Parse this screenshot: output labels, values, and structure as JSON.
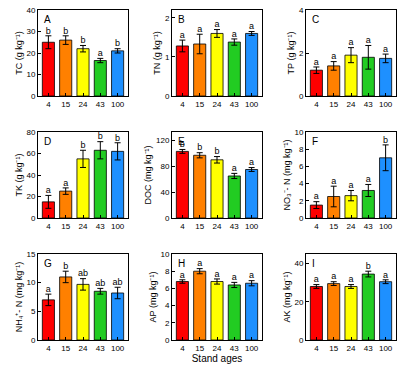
{
  "chart_data": [
    {
      "type": "bar",
      "title": "A",
      "y_label": "TC (g kg⁻¹)",
      "categories": [
        "4",
        "15",
        "24",
        "43",
        "100"
      ],
      "values": [
        25,
        26,
        22,
        16.5,
        21
      ],
      "errors": [
        3,
        2,
        1.5,
        1,
        1
      ],
      "annotations": [
        "b",
        "b",
        "b",
        "a",
        "b"
      ],
      "colors": [
        "#ff0000",
        "#ff8000",
        "#ffff00",
        "#22cc22",
        "#1e90ff"
      ],
      "ylim": [
        0,
        40
      ],
      "yticks": [
        0,
        10,
        20,
        30,
        40
      ]
    },
    {
      "type": "bar",
      "title": "B",
      "y_label": "TN (g kg⁻¹)",
      "categories": [
        "4",
        "15",
        "24",
        "43",
        "100"
      ],
      "values": [
        1.28,
        1.33,
        1.6,
        1.38,
        1.6
      ],
      "errors": [
        0.15,
        0.25,
        0.1,
        0.08,
        0.05
      ],
      "annotations": [
        "a",
        "a",
        "a",
        "a",
        "a"
      ],
      "colors": [
        "#ff0000",
        "#ff8000",
        "#ffff00",
        "#22cc22",
        "#1e90ff"
      ],
      "ylim": [
        0,
        2.2
      ],
      "yticks": [
        0,
        1,
        2
      ]
    },
    {
      "type": "bar",
      "title": "C",
      "y_label": "TP (g kg⁻¹)",
      "categories": [
        "4",
        "15",
        "24",
        "43",
        "100"
      ],
      "values": [
        1.2,
        1.4,
        1.9,
        1.8,
        1.75
      ],
      "errors": [
        0.15,
        0.2,
        0.35,
        0.55,
        0.2
      ],
      "annotations": [
        "a",
        "a",
        "a",
        "a",
        "a"
      ],
      "colors": [
        "#ff0000",
        "#ff8000",
        "#ffff00",
        "#22cc22",
        "#1e90ff"
      ],
      "ylim": [
        0,
        4
      ],
      "yticks": [
        0,
        2,
        4
      ]
    },
    {
      "type": "bar",
      "title": "D",
      "y_label": "TK (g kg⁻¹)",
      "categories": [
        "4",
        "15",
        "24",
        "43",
        "100"
      ],
      "values": [
        15,
        25,
        55,
        63,
        62
      ],
      "errors": [
        6,
        3,
        8,
        8,
        8
      ],
      "annotations": [
        "a",
        "a",
        "b",
        "b",
        "b"
      ],
      "colors": [
        "#ff0000",
        "#ff8000",
        "#ffff00",
        "#22cc22",
        "#1e90ff"
      ],
      "ylim": [
        0,
        80
      ],
      "yticks": [
        0,
        20,
        40,
        60,
        80
      ]
    },
    {
      "type": "bar",
      "title": "E",
      "y_label": "DOC (mg kg⁻¹)",
      "categories": [
        "4",
        "15",
        "24",
        "43",
        "100"
      ],
      "values": [
        103,
        97,
        90,
        65,
        75
      ],
      "errors": [
        3,
        4,
        5,
        4,
        3
      ],
      "annotations": [
        "b",
        "b",
        "b",
        "a",
        "a"
      ],
      "colors": [
        "#ff0000",
        "#ff8000",
        "#ffff00",
        "#22cc22",
        "#1e90ff"
      ],
      "ylim": [
        0,
        133
      ],
      "yticks": [
        0,
        40,
        80,
        120
      ]
    },
    {
      "type": "bar",
      "title": "F",
      "y_label": "NO₃⁻- N (mg kg⁻¹)",
      "categories": [
        "4",
        "15",
        "24",
        "43",
        "100"
      ],
      "values": [
        1.5,
        2.5,
        2.6,
        3.2,
        7
      ],
      "errors": [
        0.4,
        1.2,
        0.6,
        0.7,
        1.5
      ],
      "annotations": [
        "a",
        "a",
        "a",
        "a",
        "b"
      ],
      "colors": [
        "#ff0000",
        "#ff8000",
        "#ffff00",
        "#22cc22",
        "#1e90ff"
      ],
      "ylim": [
        0,
        10
      ],
      "yticks": [
        0,
        2,
        4,
        6,
        8,
        10
      ]
    },
    {
      "type": "bar",
      "title": "G",
      "y_label": "NH₄⁺- N (mg kg⁻¹)",
      "categories": [
        "4",
        "15",
        "24",
        "43",
        "100"
      ],
      "values": [
        7,
        11,
        9.7,
        8.5,
        8.2
      ],
      "errors": [
        1,
        1,
        1,
        0.5,
        1
      ],
      "annotations": [
        "a",
        "b",
        "ab",
        "ab",
        "ab"
      ],
      "colors": [
        "#ff0000",
        "#ff8000",
        "#ffff00",
        "#22cc22",
        "#1e90ff"
      ],
      "ylim": [
        0,
        15
      ],
      "yticks": [
        0,
        5,
        10,
        15
      ]
    },
    {
      "type": "bar",
      "title": "H",
      "y_label": "AP (mg kg⁻¹)",
      "x_label": "Stand ages",
      "categories": [
        "4",
        "15",
        "24",
        "43",
        "100"
      ],
      "values": [
        6.8,
        8,
        6.8,
        6.4,
        6.6
      ],
      "errors": [
        0.2,
        0.3,
        0.3,
        0.3,
        0.3
      ],
      "annotations": [
        "a",
        "a",
        "a",
        "a",
        "a"
      ],
      "colors": [
        "#ff0000",
        "#ff8000",
        "#ffff00",
        "#22cc22",
        "#1e90ff"
      ],
      "ylim": [
        0,
        10
      ],
      "yticks": [
        0,
        2,
        4,
        6,
        8,
        10
      ]
    },
    {
      "type": "bar",
      "title": "I",
      "y_label": "AK (mg kg⁻¹)",
      "categories": [
        "4",
        "15",
        "24",
        "43",
        "100"
      ],
      "values": [
        28,
        29.5,
        28,
        34.5,
        30.5
      ],
      "errors": [
        1,
        1,
        1,
        1.5,
        1
      ],
      "annotations": [
        "a",
        "a",
        "a",
        "b",
        "a"
      ],
      "colors": [
        "#ff0000",
        "#ff8000",
        "#ffff00",
        "#22cc22",
        "#1e90ff"
      ],
      "ylim": [
        0,
        45
      ],
      "yticks": [
        0,
        20,
        40
      ]
    }
  ]
}
